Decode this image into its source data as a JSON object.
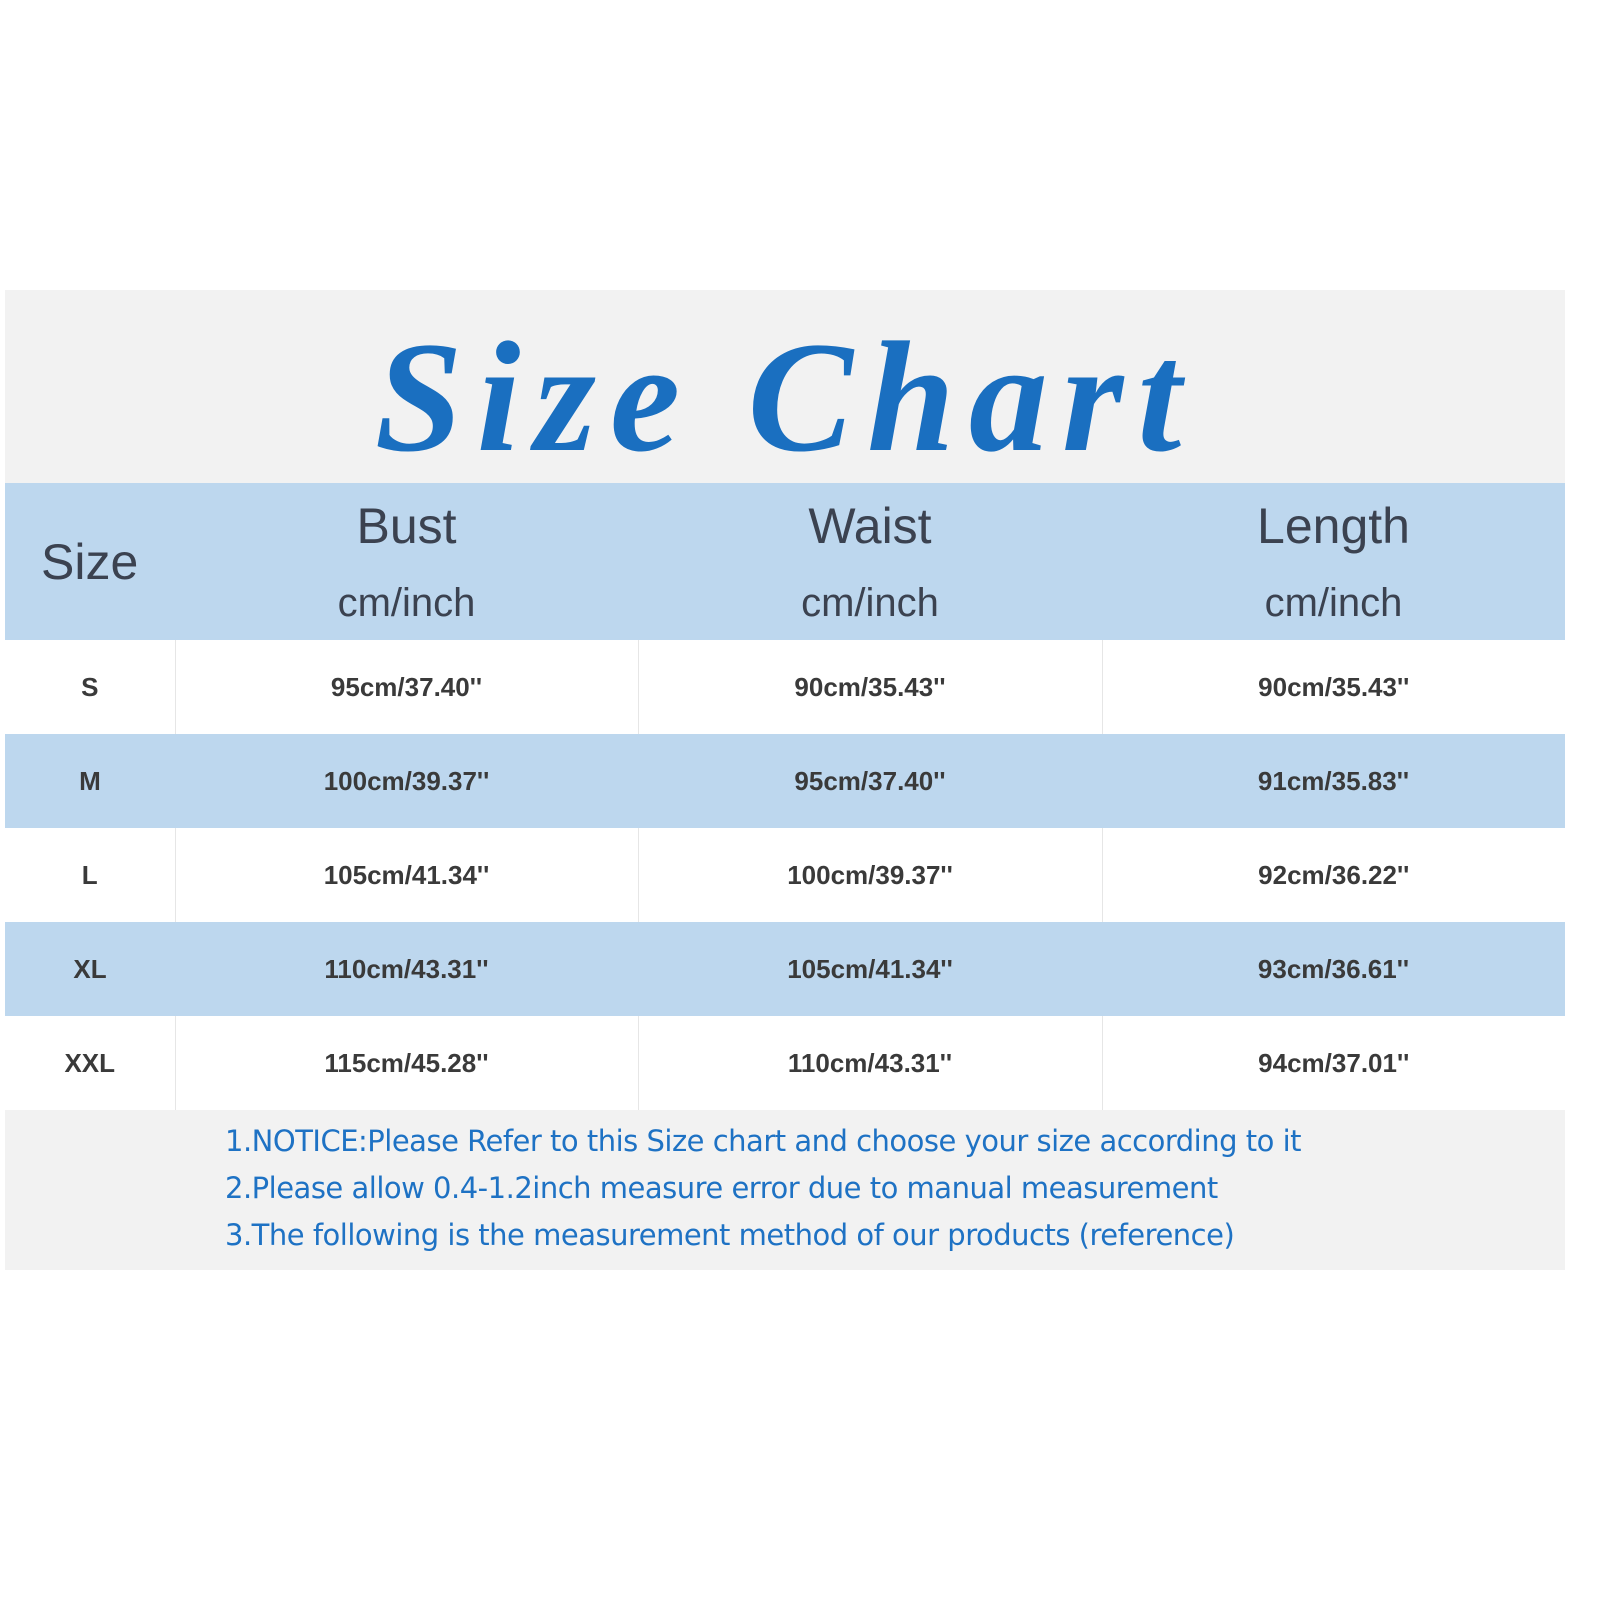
{
  "title": "Size Chart",
  "colors": {
    "title": "#1a6fc0",
    "header_bg": "#bdd7ee",
    "notes_text": "#1e72c4",
    "panel_bg": "#f2f2f2"
  },
  "table": {
    "headers": [
      {
        "label": "Size",
        "unit": ""
      },
      {
        "label": "Bust",
        "unit": "cm/inch"
      },
      {
        "label": "Waist",
        "unit": "cm/inch"
      },
      {
        "label": "Length",
        "unit": "cm/inch"
      }
    ],
    "rows": [
      [
        "S",
        "95cm/37.40''",
        "90cm/35.43''",
        "90cm/35.43''"
      ],
      [
        "M",
        "100cm/39.37''",
        "95cm/37.40''",
        "91cm/35.83''"
      ],
      [
        "L",
        "105cm/41.34''",
        "100cm/39.37''",
        "92cm/36.22''"
      ],
      [
        "XL",
        "110cm/43.31''",
        "105cm/41.34''",
        "93cm/36.61''"
      ],
      [
        "XXL",
        "115cm/45.28''",
        "110cm/43.31''",
        "94cm/37.01''"
      ]
    ]
  },
  "notes": [
    "1.NOTICE:Please Refer to this Size chart and choose your size according to it",
    "2.Please allow 0.4-1.2inch measure error due to manual measurement",
    "3.The following is the measurement method of our products (reference)"
  ]
}
